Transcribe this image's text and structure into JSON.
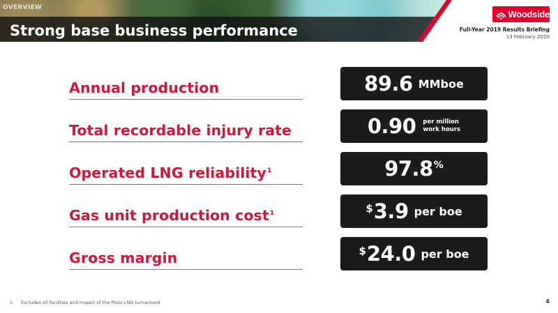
{
  "header": {
    "section_tag": "OVERVIEW",
    "title": "Strong base business performance",
    "logo_text": "Woodside",
    "briefing_title": "Full-Year 2019 Results Briefing",
    "briefing_date": "13 February 2020"
  },
  "metrics": [
    {
      "label": "Annual production",
      "footnote_ref": "",
      "value": "89.6",
      "unit": "MMboe"
    },
    {
      "label": "Total recordable injury rate",
      "footnote_ref": "",
      "value": "0.90",
      "unit_line1": "per million",
      "unit_line2": "work hours"
    },
    {
      "label": "Operated LNG reliability",
      "footnote_ref": "1",
      "value": "97.8",
      "suffix": "%"
    },
    {
      "label": "Gas unit production cost",
      "footnote_ref": "1",
      "prefix": "$",
      "value": "3.9",
      "unit": "per boe"
    },
    {
      "label": "Gross margin",
      "footnote_ref": "",
      "prefix": "$",
      "value": "24.0",
      "unit": "per boe"
    }
  ],
  "footer": {
    "footnote_number": "1",
    "footnote_text": "Excludes oil facilities and impact of the Pluto LNG turnaround",
    "page_number": "4"
  },
  "colors": {
    "accent_red": "#d5153b",
    "logo_red": "#e4002b",
    "box_dark": "#1b1b1b"
  }
}
